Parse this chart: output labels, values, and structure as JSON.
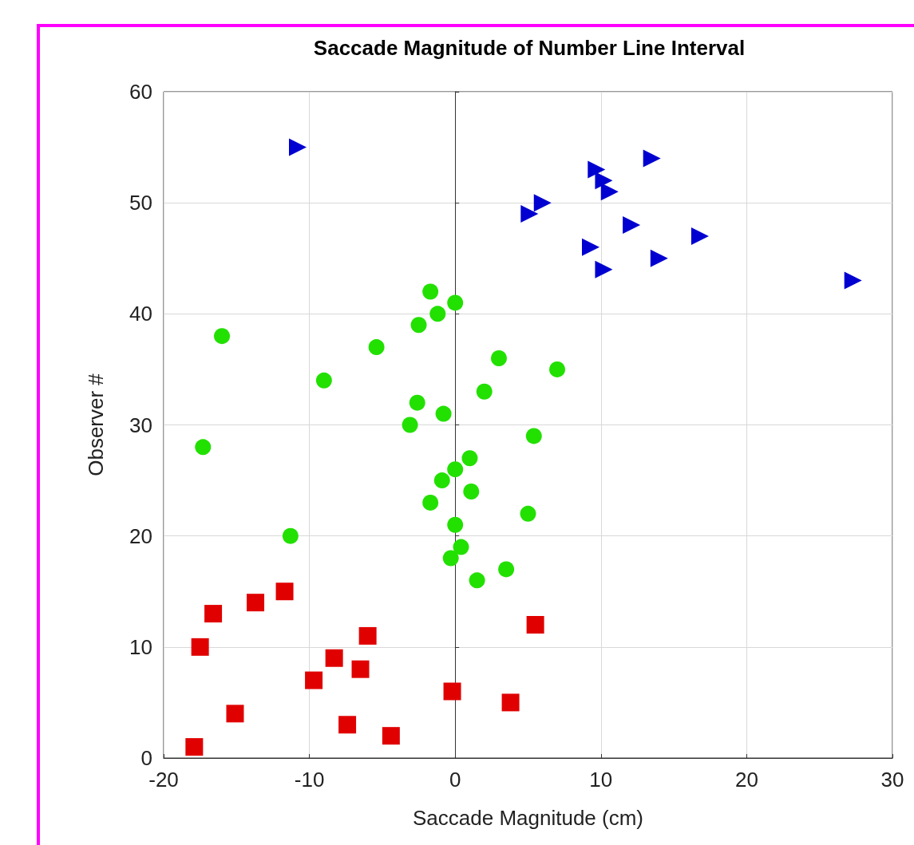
{
  "chart_data": {
    "type": "scatter",
    "title": "Saccade Magnitude of Number Line Interval",
    "xlabel": "Saccade Magnitude (cm)",
    "ylabel": "Observer #",
    "xlim": [
      -20,
      30
    ],
    "xticks": [
      -20,
      -10,
      0,
      10,
      20,
      30
    ],
    "ylim": [
      0,
      60
    ],
    "yticks": [
      0,
      10,
      20,
      30,
      40,
      50,
      60
    ],
    "grid": true,
    "series": [
      {
        "color": "#e00000",
        "marker": "square",
        "x": [
          -17.9,
          -4.4,
          -7.4,
          -15.1,
          3.8,
          -0.2,
          -9.7,
          -6.5,
          -8.3,
          -17.5,
          -6.0,
          5.5,
          -16.6,
          -13.7,
          -11.7
        ],
        "values": [
          1,
          2,
          3,
          4,
          5,
          6,
          7,
          8,
          9,
          10,
          11,
          12,
          13,
          14,
          15
        ]
      },
      {
        "color": "#22e000",
        "marker": "circle",
        "x": [
          1.5,
          3.5,
          -0.3,
          0.4,
          -11.3,
          0,
          5.0,
          -1.7,
          1.1,
          -0.9,
          0,
          1.0,
          -17.3,
          5.4,
          -3.1,
          -0.8,
          -2.6,
          2.0,
          -9.0,
          7.0,
          3.0,
          -5.4,
          -16.0,
          -2.5,
          -1.2,
          0,
          -1.7
        ],
        "values": [
          16,
          17,
          18,
          19,
          20,
          21,
          22,
          23,
          24,
          25,
          26,
          27,
          28,
          29,
          30,
          31,
          32,
          33,
          34,
          35,
          36,
          37,
          38,
          39,
          40,
          41,
          42
        ]
      },
      {
        "color": "#0000d0",
        "marker": "triangle",
        "x": [
          27.3,
          10.2,
          14.0,
          9.3,
          16.8,
          12.1,
          5.1,
          6.0,
          10.6,
          10.2,
          9.7,
          13.5,
          -10.8
        ],
        "values": [
          43,
          44,
          45,
          46,
          47,
          48,
          49,
          50,
          51,
          52,
          53,
          54,
          55
        ]
      }
    ]
  }
}
